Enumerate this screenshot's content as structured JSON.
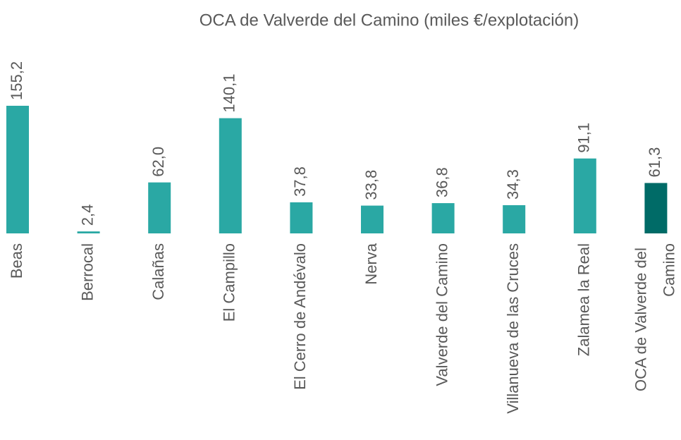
{
  "chart_data": {
    "type": "bar",
    "title": "OCA de Valverde del Camino (miles €/explotación)",
    "categories": [
      "Beas",
      "Berrocal",
      "Calañas",
      "El Campillo",
      "El Cerro de Andévalo",
      "Nerva",
      "Valverde del Camino",
      "Villanueva de las Cruces",
      "Zalamea la Real",
      "OCA de Valverde del Camino"
    ],
    "values": [
      155.2,
      2.4,
      62.0,
      140.1,
      37.8,
      33.8,
      36.8,
      34.3,
      91.1,
      61.3
    ],
    "value_labels": [
      "155,2",
      "2,4",
      "62,0",
      "140,1",
      "37,8",
      "33,8",
      "36,8",
      "34,3",
      "91,1",
      "61,3"
    ],
    "colors": [
      "#2aa8a4",
      "#2aa8a4",
      "#2aa8a4",
      "#2aa8a4",
      "#2aa8a4",
      "#2aa8a4",
      "#2aa8a4",
      "#2aa8a4",
      "#2aa8a4",
      "#006b67"
    ]
  }
}
